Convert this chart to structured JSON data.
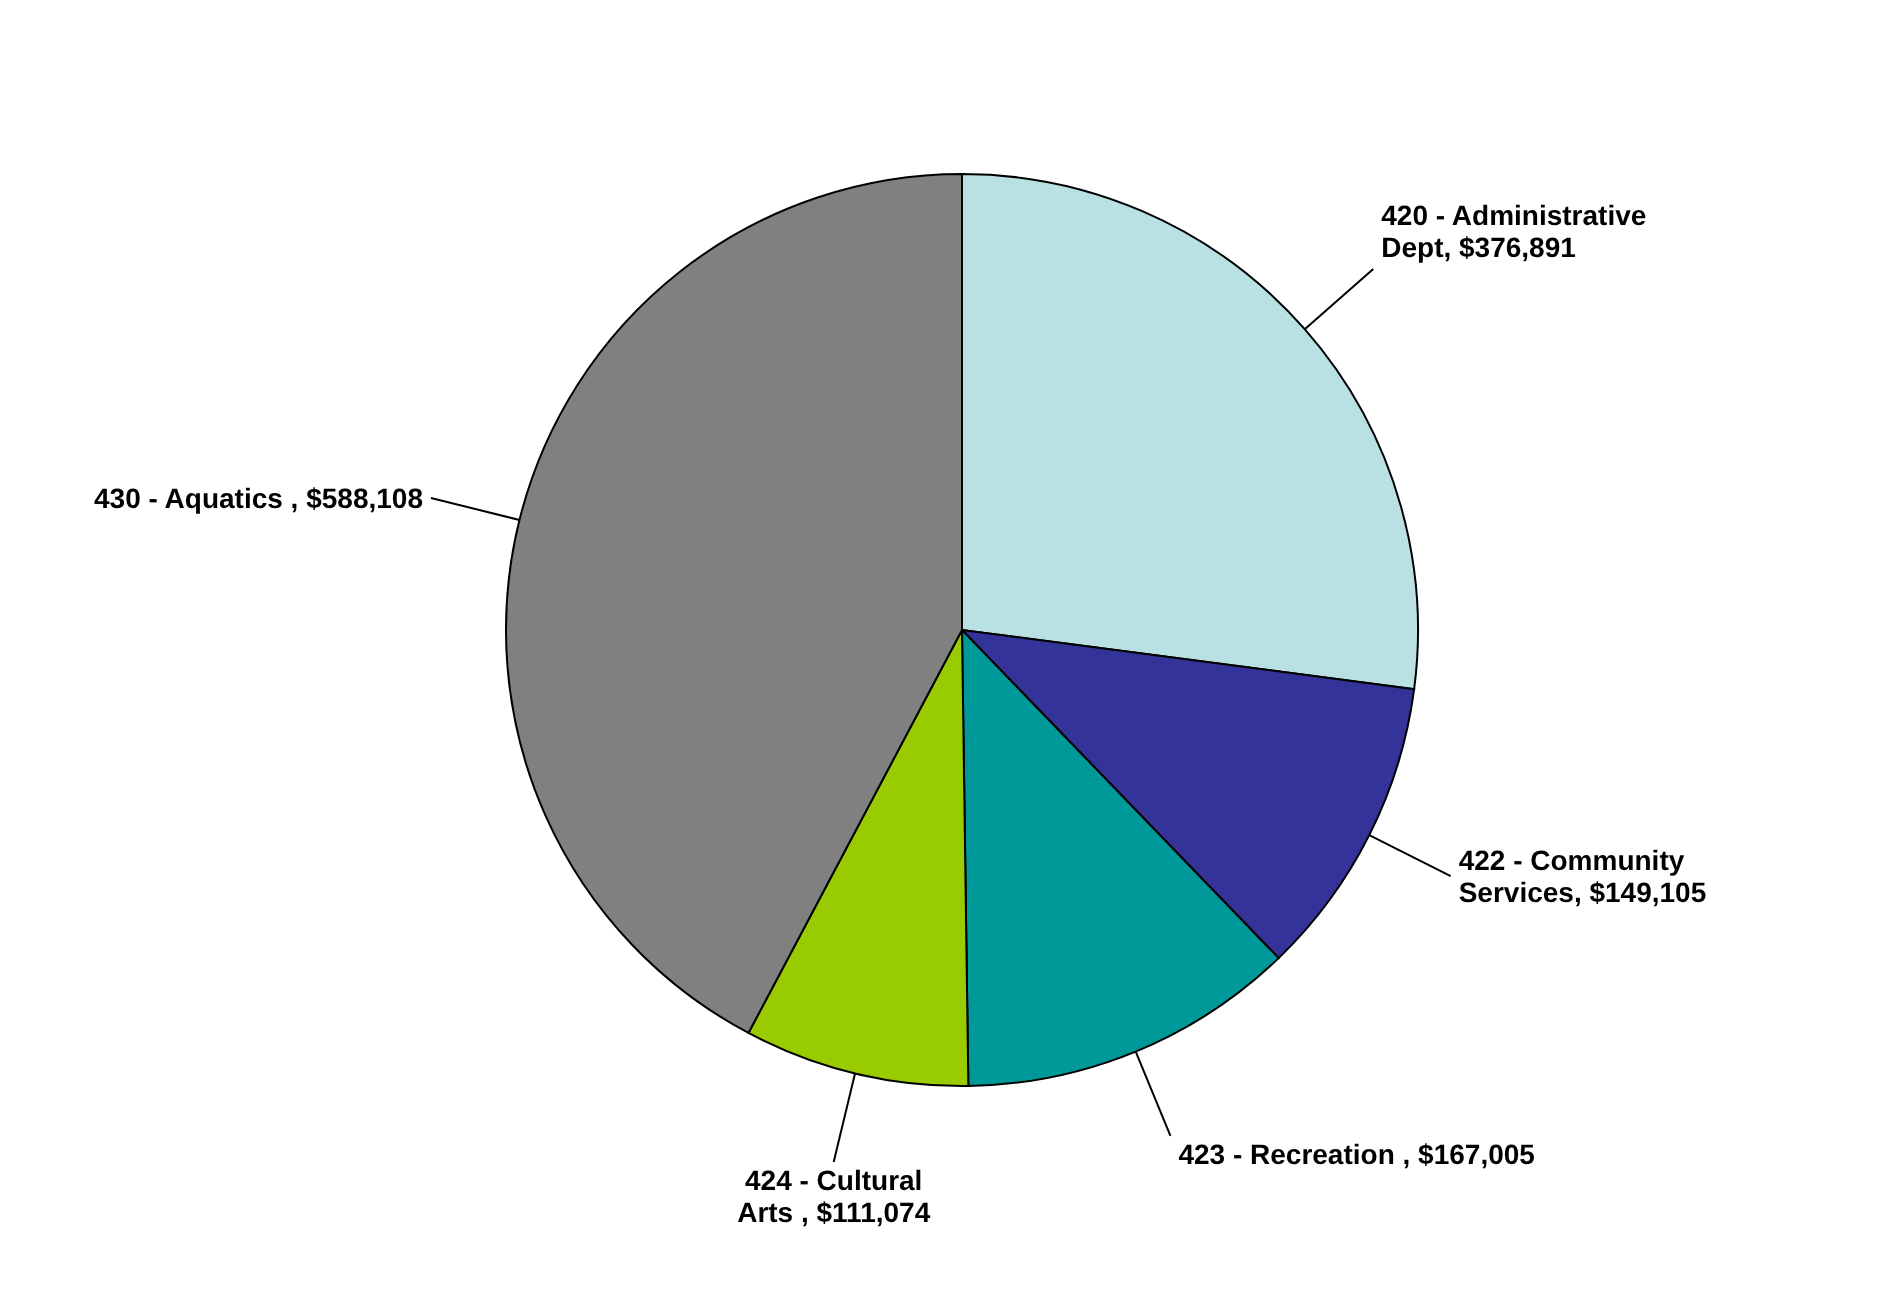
{
  "chart_data": {
    "type": "pie",
    "categories": [
      "420 - Administrative Dept",
      "422 - Community Services",
      "423 - Recreation ",
      "424 - Cultural Arts ",
      "430 - Aquatics "
    ],
    "values": [
      376891,
      149105,
      167005,
      111074,
      588108
    ],
    "value_labels": [
      "$376,891",
      "$149,105",
      "$167,005",
      "$111,074",
      "$588,108"
    ],
    "colors": [
      "#b9e0e3",
      "#333399",
      "#009999",
      "#99cc00",
      "#808080"
    ]
  }
}
